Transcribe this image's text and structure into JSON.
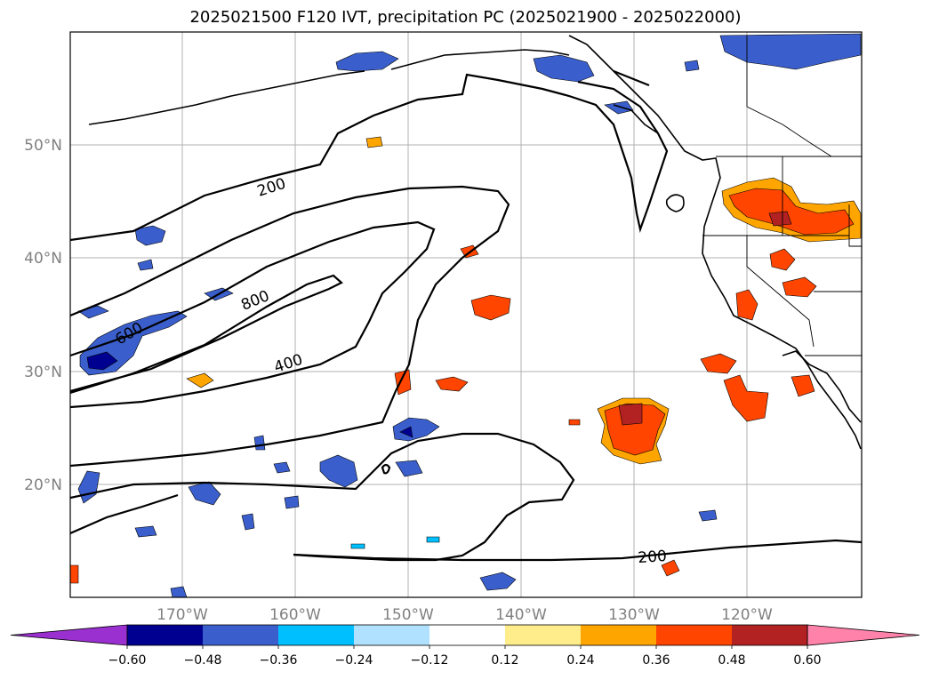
{
  "title": "2025021500 F120 IVT, precipitation PC (2025021900 - 2025022000)",
  "map": {
    "lat_labels": [
      "50°N",
      "40°N",
      "30°N",
      "20°N"
    ],
    "lon_labels": [
      "170°W",
      "160°W",
      "150°W",
      "140°W",
      "130°W",
      "120°W"
    ],
    "contour_labels": [
      "200",
      "600",
      "800",
      "400",
      "200"
    ]
  },
  "colorbar": {
    "ticks": [
      "−0.60",
      "−0.48",
      "−0.36",
      "−0.24",
      "−0.12",
      "0.12",
      "0.24",
      "0.36",
      "0.48",
      "0.60"
    ],
    "colors": [
      "#9b30d0",
      "#000090",
      "#3a5fcd",
      "#00bfff",
      "#b0e2ff",
      "#ffffff",
      "#ffec8b",
      "#ffa500",
      "#ff4500",
      "#b22222",
      "#ff82ab"
    ]
  }
}
